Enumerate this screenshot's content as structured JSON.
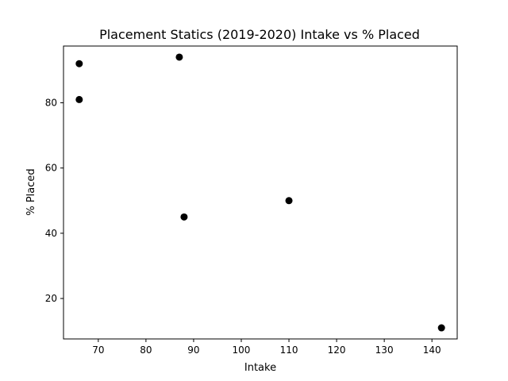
{
  "chart_data": {
    "type": "scatter",
    "title": "Placement Statics (2019-2020) Intake vs % Placed",
    "xlabel": "Intake",
    "ylabel": "% Placed",
    "xlim": [
      62.7,
      145.3
    ],
    "ylim": [
      7.6,
      97.4
    ],
    "xticks": [
      70,
      80,
      90,
      100,
      110,
      120,
      130,
      140
    ],
    "yticks": [
      20,
      40,
      60,
      80
    ],
    "grid": false,
    "legend": "none",
    "marker_color": "#000000",
    "series": [
      {
        "x": [
          66,
          66,
          87,
          88,
          110,
          142
        ],
        "y": [
          92,
          81,
          94,
          45,
          50,
          11
        ]
      }
    ]
  }
}
